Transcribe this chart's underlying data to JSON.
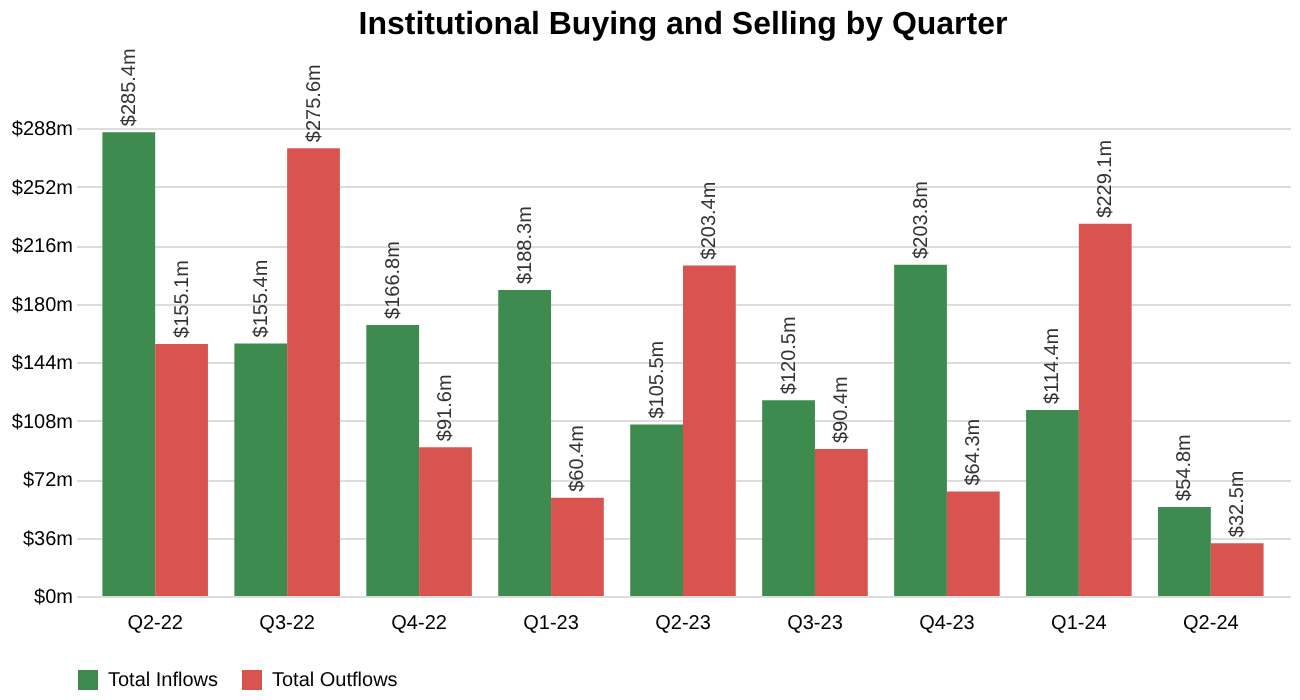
{
  "chart_data": {
    "type": "bar",
    "title": "Institutional Buying and Selling by Quarter",
    "categories": [
      "Q2-22",
      "Q3-22",
      "Q4-22",
      "Q1-23",
      "Q2-23",
      "Q3-23",
      "Q4-23",
      "Q1-24",
      "Q2-24"
    ],
    "series": [
      {
        "name": "Total Inflows",
        "color": "#3d8b4f",
        "values": [
          285.4,
          155.4,
          166.8,
          188.3,
          105.5,
          120.5,
          203.8,
          114.4,
          54.8
        ],
        "value_labels": [
          "$285.4m",
          "$155.4m",
          "$166.8m",
          "$188.3m",
          "$105.5m",
          "$120.5m",
          "$203.8m",
          "$114.4m",
          "$54.8m"
        ]
      },
      {
        "name": "Total Outflows",
        "color": "#d9534f",
        "values": [
          155.1,
          275.6,
          91.6,
          60.4,
          203.4,
          90.4,
          64.3,
          229.1,
          32.5
        ],
        "value_labels": [
          "$155.1m",
          "$275.6m",
          "$91.6m",
          "$60.4m",
          "$203.4m",
          "$90.4m",
          "$64.3m",
          "$229.1m",
          "$32.5m"
        ]
      }
    ],
    "ylim": [
      0,
      288
    ],
    "yticks": [
      {
        "value": 0,
        "label": "$0m"
      },
      {
        "value": 36,
        "label": "$36m"
      },
      {
        "value": 72,
        "label": "$72m"
      },
      {
        "value": 108,
        "label": "$108m"
      },
      {
        "value": 144,
        "label": "$144m"
      },
      {
        "value": 180,
        "label": "$180m"
      },
      {
        "value": 216,
        "label": "$216m"
      },
      {
        "value": 252,
        "label": "$252m"
      },
      {
        "value": 288,
        "label": "$288m"
      }
    ],
    "grid": "y",
    "legend": "bottom left"
  }
}
